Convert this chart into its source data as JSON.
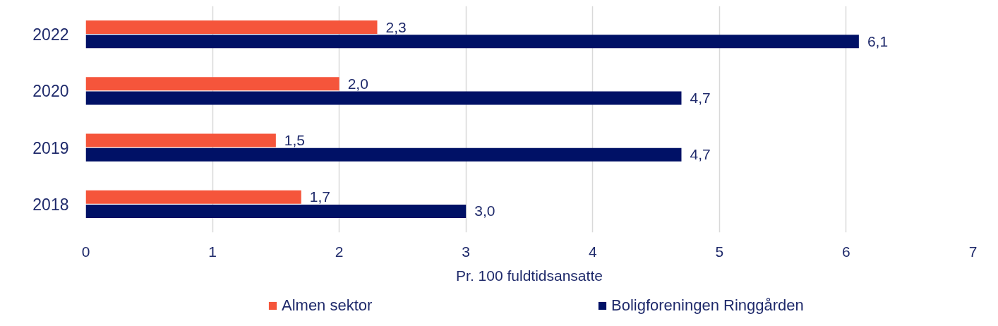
{
  "chart_data": {
    "type": "bar",
    "orientation": "horizontal",
    "xlabel": "Pr. 100 fuldtidsansatte",
    "categories": [
      "2022",
      "2020",
      "2019",
      "2018"
    ],
    "series": [
      {
        "name": "Almen sektor",
        "color": "#f5553b",
        "values": [
          2.3,
          2.0,
          1.5,
          1.7
        ],
        "value_labels": [
          "2,3",
          "2,0",
          "1,5",
          "1,7"
        ]
      },
      {
        "name": "Boligforeningen Ringgården",
        "color": "#001166",
        "values": [
          6.1,
          4.7,
          4.7,
          3.0
        ],
        "value_labels": [
          "6,1",
          "4,7",
          "4,7",
          "3,0"
        ]
      }
    ],
    "xlim": [
      0,
      7
    ],
    "xticks": [
      0,
      1,
      2,
      3,
      4,
      5,
      6,
      7
    ],
    "grid": "x",
    "legend": "bottom"
  }
}
